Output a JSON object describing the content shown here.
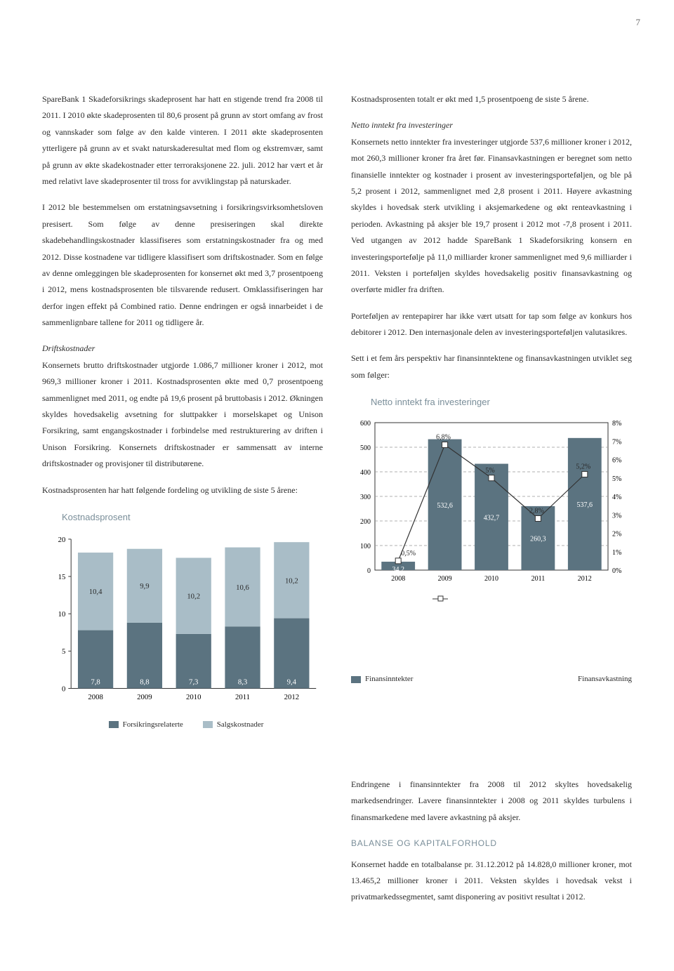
{
  "page_number": "7",
  "colors": {
    "text": "#2a2a2a",
    "muted": "#7a8e99",
    "bar_dark": "#5b7380",
    "bar_light": "#a9bdc7",
    "axis": "#333333",
    "grid_dash": "#999999",
    "white": "#ffffff"
  },
  "left_column": {
    "p1": "SpareBank 1 Skadeforsikrings skadeprosent har hatt en stigende trend fra 2008 til 2011. I 2010 økte skadeprosenten til 80,6 prosent på grunn av stort omfang av frost og vann­skader som følge av den kalde vinteren. I 2011 økte skade­prosenten ytterligere på grunn av et svakt naturskade­resultat med flom og ekstremvær, samt på grunn av økte skadekostnader etter terroraksjonene 22. juli. 2012 har vært et år med relativt lave skadeprosenter til tross for avviklingstap på naturskader.",
    "p2": "I 2012 ble bestemmelsen om erstatningsavsetning i forsikrings­virksomhetsloven presisert. Som følge av denne presiseringen skal direkte skadebehandlingskostnader klassifiseres som erstatningskostnader fra og med 2012. Disse kostnadene var tidligere klassifisert som driftskostnader. Som en følge av denne omleggingen ble skadeprosenten for konsernet økt med 3,7 prosentpoeng i 2012, mens kostnads­prosenten ble tilsvarende redusert. Omklassifiseringen har derfor ingen effekt på Combined ratio. Denne endringen er også innarbeidet i de sammenlignbare tallene for 2011 og tidligere år.",
    "driftskostnader_heading": "Driftskostnader",
    "p3": "Konsernets brutto driftskostnader utgjorde 1.086,7 millioner kroner i 2012, mot 969,3 millioner kroner i 2011. Kostnads­prosenten økte med 0,7 prosentpoeng sammenlignet med 2011, og endte på 19,6 prosent på bruttobasis i 2012. Økningen skyldes hovedsakelig avsetning for sluttpakker i morselskapet og Unison Forsikring, samt engangskostnader i forbindelse med restrukturering av driften i Unison Forsikring. Konsernets driftskostnader er sammensatt av interne driftskostnader og provisjoner til distributørene.",
    "p4": "Kostnadsprosenten har hatt følgende fordeling og utvikling de siste 5 årene:"
  },
  "right_column": {
    "p1": "Kostnadsprosenten totalt er økt med 1,5 prosentpoeng de siste 5 årene.",
    "inv_heading": "Netto inntekt fra investeringer",
    "p2": "Konsernets netto inntekter fra investeringer utgjorde 537,6 millioner kroner i 2012, mot 260,3 millioner kroner fra året før. Finansavkastningen er beregnet som netto finansielle inntekter og kostnader i prosent av investeringsporteføljen, og ble på 5,2 prosent i 2012, sammenlignet med 2,8 prosent i 2011. Høyere avkastning skyldes i hovedsak sterk utvikling i aksjemarkedene og økt renteavkastning i perioden. Av­kastning på aksjer ble 19,7 prosent i 2012 mot -7,8 prosent i 2011. Ved utgangen av 2012 hadde SpareBank 1 Skade­forsikring konsern en investeringsportefølje på 11,0 milliarder kroner sammenlignet med 9,6 milliarder i 2011. Veksten i porteføljen skyldes hovedsakelig positiv finans­avkastning og overførte midler fra driften.",
    "p3": "Porteføljen av rentepapirer har ikke vært utsatt for tap som følge av konkurs hos debitorer i 2012. Den internasjonale delen av investeringsporteføljen valutasikres.",
    "p4": "Sett i et fem års perspektiv har finansinntektene og finans­avkastningen utviklet seg som følger:",
    "p5": "Endringene i finansinntekter fra 2008 til 2012 skyltes hovedsakelig markedsendringer. Lavere finansinntekter i 2008 og 2011 skyldes turbulens i finansmarkedene med lavere avkastning på aksjer.",
    "balanse_heading": "BALANSE OG KAPITALFORHOLD",
    "p6": "Konsernet hadde en totalbalanse pr. 31.12.2012 på 14.828,0 millioner kroner, mot 13.465,2 millioner kroner i 2011. Veksten skyldes i hovedsak vekst i privatmarkedssegmentet, samt disponering av positivt resultat i 2012."
  },
  "chart1": {
    "title": "Kostnadsprosent",
    "type": "stacked-bar",
    "ylim": [
      0,
      20
    ],
    "ytick_step": 5,
    "yticks": [
      "0",
      "5",
      "10",
      "15",
      "20"
    ],
    "categories": [
      "2008",
      "2009",
      "2010",
      "2011",
      "2012"
    ],
    "top_values": [
      10.4,
      9.9,
      10.2,
      10.6,
      10.2
    ],
    "bottom_values": [
      7.8,
      8.8,
      7.3,
      8.3,
      9.4
    ],
    "top_labels": [
      "10,4",
      "9,9",
      "10,2",
      "10,6",
      "10,2"
    ],
    "bottom_labels": [
      "7,8",
      "8,8",
      "7,3",
      "8,3",
      "9,4"
    ],
    "top_color": "#a9bdc7",
    "bottom_color": "#5b7380",
    "label_fontsize": 11,
    "axis_fontsize": 11,
    "bar_width_ratio": 0.72,
    "legend": [
      "Forsikringsrelaterte",
      "Salgskostnader"
    ],
    "legend_colors": [
      "#5b7380",
      "#a9bdc7"
    ]
  },
  "chart2": {
    "title": "Netto inntekt fra investeringer",
    "type": "bar-line-dual-axis",
    "categories": [
      "2008",
      "2009",
      "2010",
      "2011",
      "2012"
    ],
    "bar_values": [
      34.2,
      532.6,
      432.7,
      260.3,
      537.6
    ],
    "bar_labels": [
      "34,2",
      "532,6",
      "432,7",
      "260,3",
      "537,6"
    ],
    "bar_color": "#5b7380",
    "line_values_pct": [
      0.5,
      6.8,
      5.0,
      2.8,
      5.2
    ],
    "line_labels": [
      "0,5%",
      "6,8%",
      "5%",
      "2,8%",
      "5,2%"
    ],
    "line_color": "#333333",
    "marker_fill": "#ffffff",
    "y_left": {
      "min": 0,
      "max": 600,
      "step": 100,
      "ticks": [
        "0",
        "100",
        "200",
        "300",
        "400",
        "500",
        "600"
      ]
    },
    "y_right": {
      "min": 0,
      "max": 8,
      "step": 1,
      "ticks": [
        "0%",
        "1%",
        "2%",
        "3%",
        "4%",
        "5%",
        "6%",
        "7%",
        "8%"
      ]
    },
    "grid_color": "#999999",
    "label_fontsize": 10,
    "legend": [
      "Finansinntekter",
      "Finansavkastning"
    ],
    "legend_swatch1": "#5b7380"
  }
}
